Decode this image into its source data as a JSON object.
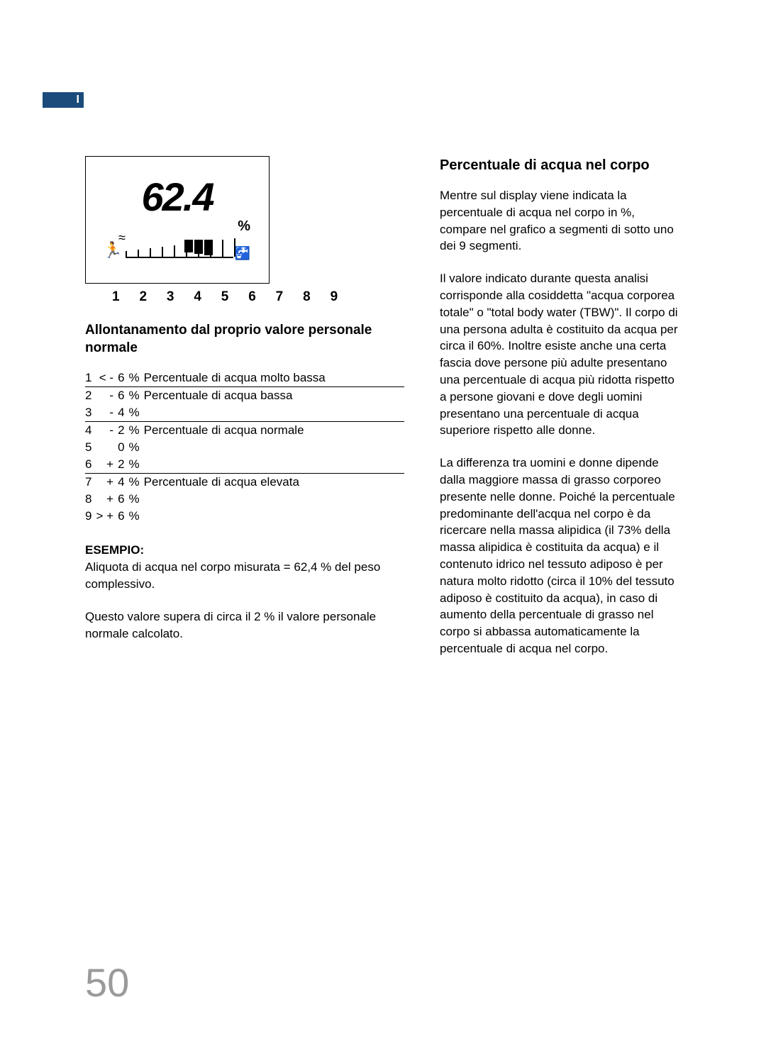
{
  "tab_label": "I",
  "display": {
    "value": "62.4",
    "percent_symbol": "%",
    "scale_labels": "1 2 3 4 5 6 7 8 9"
  },
  "subheading": "Allontanamento dal proprio valore personale normale",
  "table": {
    "rows": [
      {
        "n": "1",
        "sign": "< -",
        "val": "6",
        "pct": "%",
        "desc": "Percentuale di acqua molto bassa",
        "rule": true
      },
      {
        "n": "2",
        "sign": "-",
        "val": "6",
        "pct": "%",
        "desc": "Percentuale di acqua bassa",
        "rule": false
      },
      {
        "n": "3",
        "sign": "-",
        "val": "4",
        "pct": "%",
        "desc": "",
        "rule": true
      },
      {
        "n": "4",
        "sign": "-",
        "val": "2",
        "pct": "%",
        "desc": "Percentuale di acqua normale",
        "rule": false
      },
      {
        "n": "5",
        "sign": "",
        "val": "0",
        "pct": "%",
        "desc": "",
        "rule": false
      },
      {
        "n": "6",
        "sign": "+",
        "val": "2",
        "pct": "%",
        "desc": "",
        "rule": true
      },
      {
        "n": "7",
        "sign": "+",
        "val": "4",
        "pct": "%",
        "desc": "Percentuale di acqua elevata",
        "rule": false
      },
      {
        "n": "8",
        "sign": "+",
        "val": "6",
        "pct": "%",
        "desc": "",
        "rule": false
      },
      {
        "n": "9",
        "sign": "> +",
        "val": "6",
        "pct": "%",
        "desc": "",
        "rule": false
      }
    ]
  },
  "example": {
    "label": "ESEMPIO:",
    "line1": "Aliquota di acqua nel corpo misurata = 62,4 % del peso complessivo.",
    "line2": "Questo valore supera di circa il 2 % il valore personale normale calcolato."
  },
  "right": {
    "heading": "Percentuale di acqua nel corpo",
    "p1": "Mentre sul display viene indicata la percentuale di acqua nel corpo in %, compare nel grafico a segmenti di sotto uno dei 9 segmenti.",
    "p2": "Il valore indicato durante questa analisi corrisponde alla cosiddetta \"acqua corporea totale\" o \"total body water (TBW)\". Il corpo di una persona adulta è costituito da acqua per circa il 60%. Inoltre esiste anche una certa fascia dove persone più adulte presentano una percentuale di acqua più ridotta rispetto a persone giovani e dove degli uomini presentano una percentuale di acqua superiore rispetto alle donne.",
    "p3": "La differenza tra uomini e donne dipende dalla maggiore massa di grasso corporeo presente nelle donne. Poiché la percentuale predominante dell'acqua nel corpo è da ricercare nella massa alipidica (il 73% della massa alipidica è costituita da acqua) e il contenuto idrico nel tessuto adiposo è per natura molto ridotto (circa il 10% del tessuto adiposo è costituito da acqua), in caso di aumento della percentuale di grasso nel corpo si abbassa automaticamente la percentuale di acqua nel corpo."
  },
  "page_number": "50"
}
